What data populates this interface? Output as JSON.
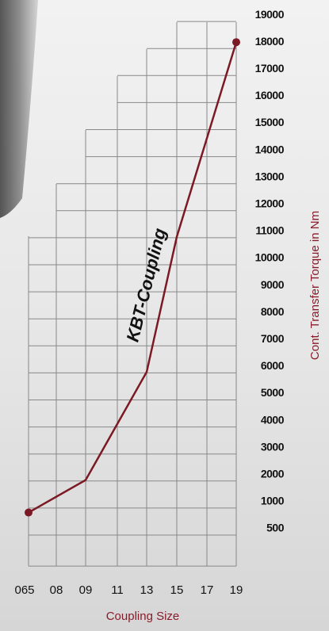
{
  "chart_data": {
    "type": "line",
    "annotation": "KBT-Coupling",
    "xlabel": "Coupling Size",
    "ylabel": "Cont. Transfer Torque in Nm",
    "categories": [
      "065",
      "08",
      "09",
      "11",
      "13",
      "15",
      "17",
      "19"
    ],
    "series": [
      {
        "color": "#7b1a24",
        "x": [
          "065",
          "09",
          "13",
          "15",
          "19"
        ],
        "values": [
          800,
          1800,
          5800,
          10800,
          18000
        ]
      }
    ],
    "ylim": [
      500,
      19000
    ],
    "yticks": [
      500,
      1000,
      2000,
      3000,
      4000,
      5000,
      6000,
      7000,
      8000,
      9000,
      10000,
      11000,
      12000,
      13000,
      14000,
      15000,
      16000,
      17000,
      18000,
      19000
    ],
    "grid": true
  }
}
